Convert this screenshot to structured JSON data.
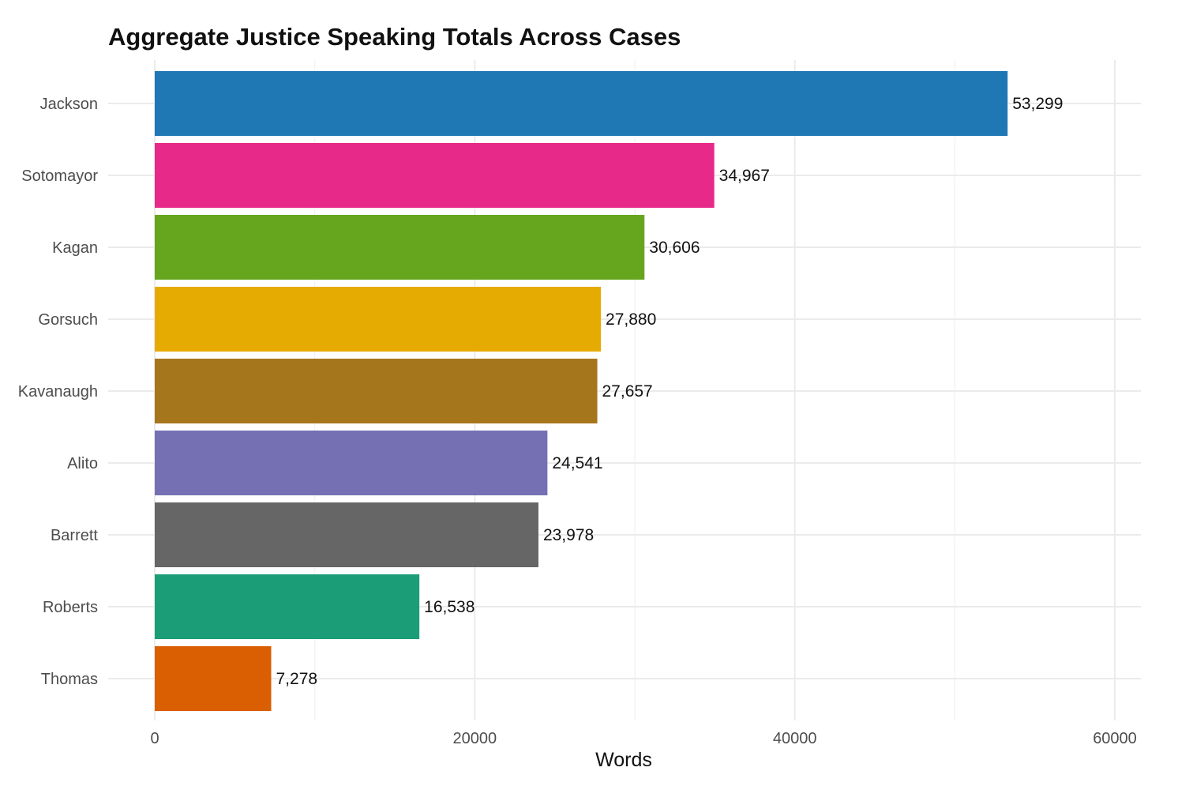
{
  "chart_data": {
    "type": "bar",
    "orientation": "horizontal",
    "title": "Aggregate Justice Speaking Totals Across Cases",
    "xlabel": "Words",
    "ylabel": "",
    "xlim": [
      0,
      61500
    ],
    "x_ticks": [
      0,
      20000,
      40000,
      60000
    ],
    "x_tick_labels": [
      "0",
      "20000",
      "40000",
      "60000"
    ],
    "grid": true,
    "legend": "none",
    "categories": [
      "Jackson",
      "Sotomayor",
      "Kagan",
      "Gorsuch",
      "Kavanaugh",
      "Alito",
      "Barrett",
      "Roberts",
      "Thomas"
    ],
    "values": [
      53299,
      34967,
      30606,
      27880,
      27657,
      24541,
      23978,
      16538,
      7278
    ],
    "value_labels": [
      "53,299",
      "34,967",
      "30,606",
      "27,880",
      "27,657",
      "24,541",
      "23,978",
      "16,538",
      "7,278"
    ],
    "colors": [
      "#1f78b4",
      "#e7298a",
      "#66a61e",
      "#e6ab02",
      "#a6761d",
      "#7570b3",
      "#666666",
      "#1b9e77",
      "#d95f02"
    ]
  }
}
